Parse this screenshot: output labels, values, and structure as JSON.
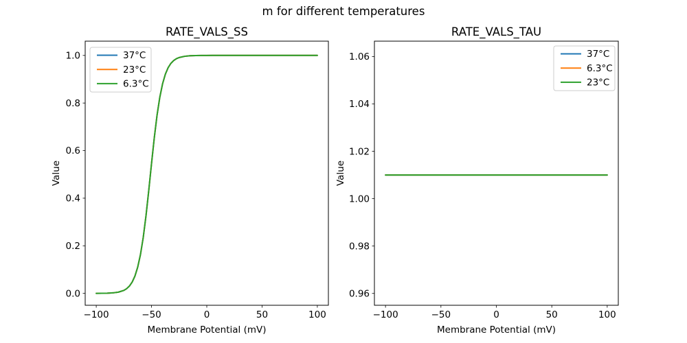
{
  "suptitle": "m for different temperatures",
  "palette": {
    "blue": "#1f77b4",
    "orange": "#ff7f0e",
    "green": "#2ca02c"
  },
  "chart_data": [
    {
      "type": "line",
      "title": "RATE_VALS_SS",
      "xlabel": "Membrane Potential (mV)",
      "ylabel": "Value",
      "xlim": [
        -110,
        110
      ],
      "ylim": [
        -0.05,
        1.06
      ],
      "grid": false,
      "xticks": [
        -100,
        -50,
        0,
        50,
        100
      ],
      "xtick_labels": [
        "−100",
        "−50",
        "0",
        "50",
        "100"
      ],
      "yticks": [
        0.0,
        0.2,
        0.4,
        0.6,
        0.8,
        1.0
      ],
      "ytick_labels": [
        "0.0",
        "0.2",
        "0.4",
        "0.6",
        "0.8",
        "1.0"
      ],
      "legend_loc": "upper left",
      "legend": [
        {
          "label": "37°C",
          "color": "#1f77b4"
        },
        {
          "label": "23°C",
          "color": "#ff7f0e"
        },
        {
          "label": "6.3°C",
          "color": "#2ca02c"
        }
      ],
      "x": [
        -100,
        -95,
        -90,
        -85,
        -80,
        -75,
        -72.5,
        -70,
        -67.5,
        -65,
        -62.5,
        -60,
        -57.5,
        -55,
        -52.5,
        -50,
        -47.5,
        -45,
        -42.5,
        -40,
        -37.5,
        -35,
        -32.5,
        -30,
        -27.5,
        -25,
        -20,
        -15,
        -10,
        -5,
        0,
        5,
        10,
        15,
        20,
        25,
        30,
        35,
        40,
        45,
        50,
        55,
        60,
        65,
        70,
        75,
        80,
        85,
        90,
        95,
        100
      ],
      "series": [
        {
          "name": "37°C",
          "color": "#1f77b4",
          "y": [
            0.0001,
            0.0003,
            0.0008,
            0.0021,
            0.0051,
            0.0125,
            0.0197,
            0.0306,
            0.0474,
            0.0728,
            0.1101,
            0.163,
            0.2347,
            0.3258,
            0.4322,
            0.5454,
            0.6537,
            0.7486,
            0.8242,
            0.8808,
            0.9209,
            0.9483,
            0.9666,
            0.9785,
            0.9863,
            0.9912,
            0.9964,
            0.9986,
            0.9994,
            0.9998,
            0.9999,
            1,
            1,
            1,
            1,
            1,
            1,
            1,
            1,
            1,
            1,
            1,
            1,
            1,
            1,
            1,
            1,
            1,
            1,
            1,
            1
          ]
        },
        {
          "name": "23°C",
          "color": "#ff7f0e",
          "y": [
            0.0001,
            0.0003,
            0.0008,
            0.0021,
            0.0051,
            0.0125,
            0.0197,
            0.0306,
            0.0474,
            0.0728,
            0.1101,
            0.163,
            0.2347,
            0.3258,
            0.4322,
            0.5454,
            0.6537,
            0.7486,
            0.8242,
            0.8808,
            0.9209,
            0.9483,
            0.9666,
            0.9785,
            0.9863,
            0.9912,
            0.9964,
            0.9986,
            0.9994,
            0.9998,
            0.9999,
            1,
            1,
            1,
            1,
            1,
            1,
            1,
            1,
            1,
            1,
            1,
            1,
            1,
            1,
            1,
            1,
            1,
            1,
            1,
            1
          ]
        },
        {
          "name": "6.3°C",
          "color": "#2ca02c",
          "y": [
            0.0001,
            0.0003,
            0.0008,
            0.0021,
            0.0051,
            0.0125,
            0.0197,
            0.0306,
            0.0474,
            0.0728,
            0.1101,
            0.163,
            0.2347,
            0.3258,
            0.4322,
            0.5454,
            0.6537,
            0.7486,
            0.8242,
            0.8808,
            0.9209,
            0.9483,
            0.9666,
            0.9785,
            0.9863,
            0.9912,
            0.9964,
            0.9986,
            0.9994,
            0.9998,
            0.9999,
            1,
            1,
            1,
            1,
            1,
            1,
            1,
            1,
            1,
            1,
            1,
            1,
            1,
            1,
            1,
            1,
            1,
            1,
            1,
            1
          ]
        }
      ]
    },
    {
      "type": "line",
      "title": "RATE_VALS_TAU",
      "xlabel": "Membrane Potential (mV)",
      "ylabel": "Value",
      "xlim": [
        -110,
        110
      ],
      "ylim": [
        0.955,
        1.0665
      ],
      "grid": false,
      "xticks": [
        -100,
        -50,
        0,
        50,
        100
      ],
      "xtick_labels": [
        "−100",
        "−50",
        "0",
        "50",
        "100"
      ],
      "yticks": [
        0.96,
        0.98,
        1.0,
        1.02,
        1.04,
        1.06
      ],
      "ytick_labels": [
        "0.96",
        "0.98",
        "1.00",
        "1.02",
        "1.04",
        "1.06"
      ],
      "legend_loc": "upper right",
      "legend": [
        {
          "label": "37°C",
          "color": "#1f77b4"
        },
        {
          "label": "6.3°C",
          "color": "#ff7f0e"
        },
        {
          "label": "23°C",
          "color": "#2ca02c"
        }
      ],
      "x": [
        -100,
        100
      ],
      "series": [
        {
          "name": "37°C",
          "color": "#1f77b4",
          "y": [
            1.01,
            1.01
          ]
        },
        {
          "name": "6.3°C",
          "color": "#ff7f0e",
          "y": [
            1.01,
            1.01
          ]
        },
        {
          "name": "23°C",
          "color": "#2ca02c",
          "y": [
            1.01,
            1.01
          ]
        }
      ]
    }
  ]
}
